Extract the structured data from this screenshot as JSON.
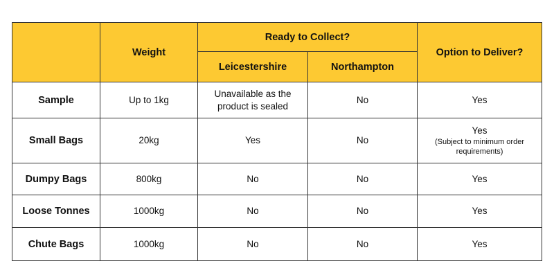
{
  "header": {
    "weight": "Weight",
    "ready_to_collect": "Ready to Collect?",
    "leicestershire": "Leicestershire",
    "northampton": "Northampton",
    "option_to_deliver": "Option to Deliver?"
  },
  "rows": [
    {
      "label": "Sample",
      "weight": "Up to 1kg",
      "leicestershire_line1": "Unavailable as the",
      "leicestershire_line2": "product is sealed",
      "northampton": "No",
      "deliver": "Yes"
    },
    {
      "label": "Small Bags",
      "weight": "20kg",
      "leicestershire": "Yes",
      "northampton": "No",
      "deliver": "Yes",
      "deliver_note_line1": "(Subject to minimum order",
      "deliver_note_line2": "requirements)"
    },
    {
      "label": "Dumpy Bags",
      "weight": "800kg",
      "leicestershire": "No",
      "northampton": "No",
      "deliver": "Yes"
    },
    {
      "label": "Loose Tonnes",
      "weight": "1000kg",
      "leicestershire": "No",
      "northampton": "No",
      "deliver": "Yes"
    },
    {
      "label": "Chute Bags",
      "weight": "1000kg",
      "leicestershire": "No",
      "northampton": "No",
      "deliver": "Yes"
    }
  ],
  "colors": {
    "header_background": "#fdc932",
    "border": "#333333"
  }
}
